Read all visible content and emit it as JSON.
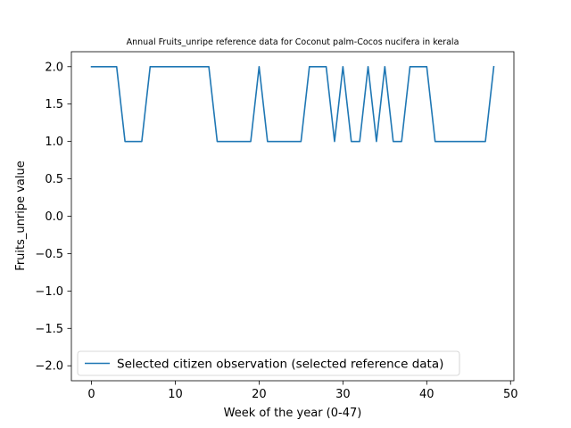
{
  "chart_data": {
    "type": "line",
    "title": "Annual Fruits_unripe reference data for Coconut palm-Cocos nucifera in kerala",
    "xlabel": "Week of the year (0-47)",
    "ylabel": "Fruits_unripe value",
    "xlim": [
      -2.4,
      50.4
    ],
    "ylim": [
      -2.2,
      2.2
    ],
    "x_ticks": [
      0,
      10,
      20,
      30,
      40,
      50
    ],
    "y_ticks": [
      -2.0,
      -1.5,
      -1.0,
      -0.5,
      0.0,
      0.5,
      1.0,
      1.5,
      2.0
    ],
    "x_tick_labels": [
      "0",
      "10",
      "20",
      "30",
      "40",
      "50"
    ],
    "y_tick_labels": [
      "−2.0",
      "−1.5",
      "−1.0",
      "−0.5",
      "0.0",
      "0.5",
      "1.0",
      "1.5",
      "2.0"
    ],
    "grid": false,
    "legend_position": "lower-left",
    "series": [
      {
        "name": "Selected citizen observation (selected reference data)",
        "color": "#1f77b4",
        "x": [
          0,
          1,
          2,
          3,
          4,
          5,
          6,
          7,
          8,
          9,
          10,
          11,
          12,
          13,
          14,
          15,
          16,
          17,
          18,
          19,
          20,
          21,
          22,
          23,
          24,
          25,
          26,
          27,
          28,
          29,
          30,
          31,
          32,
          33,
          34,
          35,
          36,
          37,
          38,
          39,
          40,
          41,
          42,
          43,
          44,
          45,
          46,
          47,
          48
        ],
        "values": [
          2,
          2,
          2,
          2,
          1,
          1,
          1,
          2,
          2,
          2,
          2,
          2,
          2,
          2,
          2,
          1,
          1,
          1,
          1,
          1,
          2,
          1,
          1,
          1,
          1,
          1,
          2,
          2,
          2,
          1,
          2,
          1,
          1,
          2,
          1,
          2,
          1,
          1,
          2,
          2,
          2,
          1,
          1,
          1,
          1,
          1,
          1,
          1,
          2
        ]
      }
    ]
  }
}
